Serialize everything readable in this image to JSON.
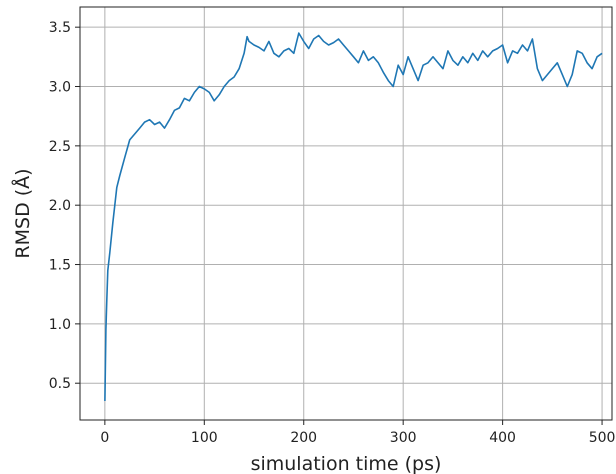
{
  "chart_data": {
    "type": "line",
    "xlabel": "simulation time (ps)",
    "ylabel": "RMSD (Å)",
    "xlim": [
      -25,
      510
    ],
    "ylim": [
      0.19,
      3.67
    ],
    "grid": true,
    "xticks": [
      0,
      100,
      200,
      300,
      400,
      500
    ],
    "yticks": [
      0.5,
      1.0,
      1.5,
      2.0,
      2.5,
      3.0,
      3.5
    ],
    "xtick_labels": [
      "0",
      "100",
      "200",
      "300",
      "400",
      "500"
    ],
    "ytick_labels": [
      "0.5",
      "1.0",
      "1.5",
      "2.0",
      "2.5",
      "3.0",
      "3.5"
    ],
    "line_color": "#1f77b4",
    "series": [
      {
        "x": [
          0,
          1,
          2,
          3,
          5,
          8,
          10,
          12,
          15,
          20,
          25,
          30,
          35,
          40,
          45,
          50,
          55,
          60,
          65,
          70,
          75,
          80,
          85,
          90,
          95,
          100,
          105,
          110,
          115,
          120,
          125,
          130,
          135,
          140,
          143,
          145,
          150,
          155,
          160,
          165,
          170,
          175,
          180,
          185,
          190,
          195,
          200,
          205,
          210,
          215,
          220,
          225,
          230,
          235,
          240,
          245,
          250,
          255,
          260,
          265,
          270,
          275,
          280,
          285,
          290,
          295,
          300,
          305,
          310,
          315,
          320,
          325,
          330,
          335,
          340,
          345,
          350,
          355,
          360,
          365,
          370,
          375,
          380,
          385,
          390,
          395,
          400,
          405,
          410,
          415,
          420,
          425,
          430,
          435,
          440,
          445,
          450,
          455,
          460,
          465,
          470,
          475,
          480,
          485,
          490,
          495,
          500
        ],
        "y": [
          0.35,
          0.95,
          1.2,
          1.45,
          1.6,
          1.85,
          2.0,
          2.15,
          2.25,
          2.4,
          2.55,
          2.6,
          2.65,
          2.7,
          2.72,
          2.68,
          2.7,
          2.65,
          2.72,
          2.8,
          2.82,
          2.9,
          2.88,
          2.95,
          3.0,
          2.98,
          2.95,
          2.88,
          2.93,
          3.0,
          3.05,
          3.08,
          3.15,
          3.28,
          3.42,
          3.38,
          3.35,
          3.33,
          3.3,
          3.38,
          3.28,
          3.25,
          3.3,
          3.32,
          3.28,
          3.45,
          3.38,
          3.32,
          3.4,
          3.43,
          3.38,
          3.35,
          3.37,
          3.4,
          3.35,
          3.3,
          3.25,
          3.2,
          3.3,
          3.22,
          3.25,
          3.2,
          3.12,
          3.05,
          3.0,
          3.18,
          3.1,
          3.25,
          3.15,
          3.05,
          3.18,
          3.2,
          3.25,
          3.2,
          3.15,
          3.3,
          3.22,
          3.18,
          3.25,
          3.2,
          3.28,
          3.22,
          3.3,
          3.25,
          3.3,
          3.32,
          3.35,
          3.2,
          3.3,
          3.28,
          3.35,
          3.3,
          3.4,
          3.15,
          3.05,
          3.1,
          3.15,
          3.2,
          3.1,
          3.0,
          3.1,
          3.3,
          3.28,
          3.2,
          3.15,
          3.25,
          3.28
        ]
      }
    ]
  }
}
